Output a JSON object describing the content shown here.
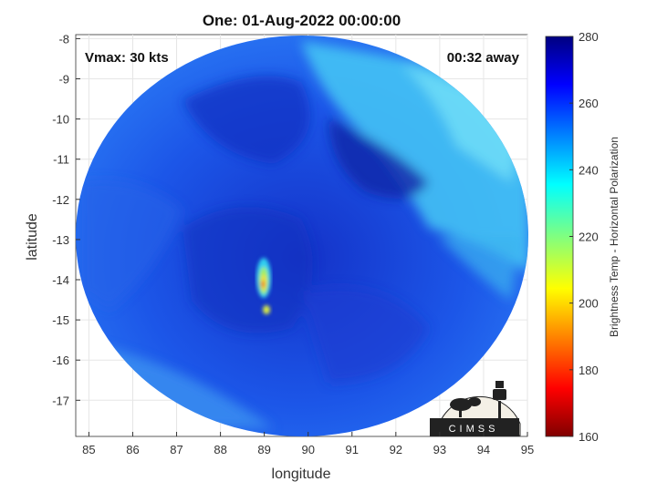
{
  "title": "One: 01-Aug-2022 00:00:00",
  "annotations": {
    "vmax": "Vmax: 30 kts",
    "time_away": "00:32 away"
  },
  "axes": {
    "xlabel": "longitude",
    "ylabel": "latitude",
    "xlim": [
      84.7,
      95.0
    ],
    "ylim": [
      -17.9,
      -7.9
    ],
    "xticks": [
      "85",
      "86",
      "87",
      "88",
      "89",
      "90",
      "91",
      "92",
      "93",
      "94",
      "95"
    ],
    "yticks": [
      "-8",
      "-9",
      "-10",
      "-11",
      "-12",
      "-13",
      "-14",
      "-15",
      "-16",
      "-17"
    ]
  },
  "colorbar": {
    "label": "Brightness Temp - Horizontal Polarization",
    "range": [
      160,
      280
    ],
    "ticks": [
      "280",
      "260",
      "240",
      "220",
      "200",
      "180",
      "160"
    ],
    "colormap": "jet"
  },
  "logo": {
    "text": "CIMSS"
  },
  "colors": {
    "deep_blue": "#1838d8",
    "mid_blue": "#1e64f0",
    "cyan": "#46c8f4",
    "warm_core": "#f0e040"
  }
}
